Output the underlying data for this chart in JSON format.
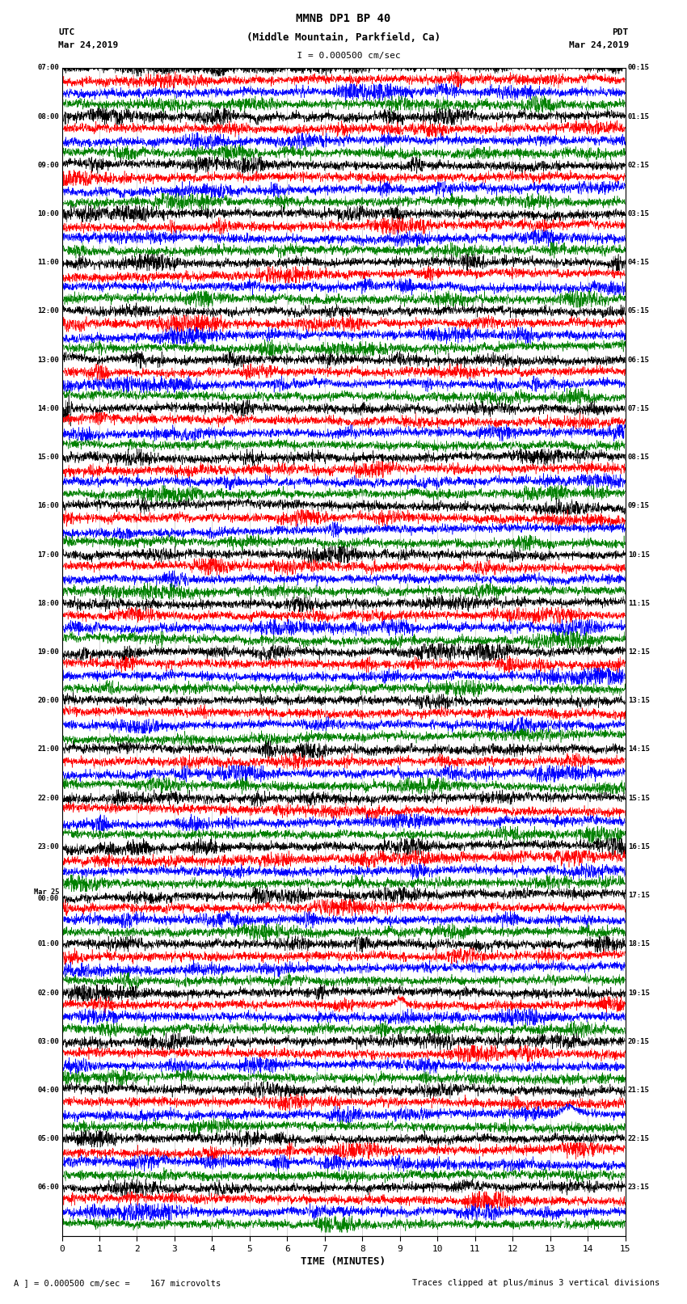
{
  "title_line1": "MMNB DP1 BP 40",
  "title_line2": "(Middle Mountain, Parkfield, Ca)",
  "scale_text": "I = 0.000500 cm/sec",
  "left_header": "UTC",
  "left_date": "Mar 24,2019",
  "right_header": "PDT",
  "right_date": "Mar 24,2019",
  "xlabel": "TIME (MINUTES)",
  "footer_left": "A ] = 0.000500 cm/sec =    167 microvolts",
  "footer_right": "Traces clipped at plus/minus 3 vertical divisions",
  "utc_hour_labels": [
    "07:00",
    "08:00",
    "09:00",
    "10:00",
    "11:00",
    "12:00",
    "13:00",
    "14:00",
    "15:00",
    "16:00",
    "17:00",
    "18:00",
    "19:00",
    "20:00",
    "21:00",
    "22:00",
    "23:00",
    "Mar 25\n00:00",
    "01:00",
    "02:00",
    "03:00",
    "04:00",
    "05:00",
    "06:00"
  ],
  "pdt_hour_labels": [
    "00:15",
    "01:15",
    "02:15",
    "03:15",
    "04:15",
    "05:15",
    "06:15",
    "07:15",
    "08:15",
    "09:15",
    "10:15",
    "11:15",
    "12:15",
    "13:15",
    "14:15",
    "15:15",
    "16:15",
    "17:15",
    "18:15",
    "19:15",
    "20:15",
    "21:15",
    "22:15",
    "23:15"
  ],
  "trace_colors": [
    "black",
    "red",
    "blue",
    "green"
  ],
  "n_hours": 24,
  "n_channels": 4,
  "time_max": 15,
  "xticks": [
    0,
    1,
    2,
    3,
    4,
    5,
    6,
    7,
    8,
    9,
    10,
    11,
    12,
    13,
    14,
    15
  ],
  "bg_color": "#ffffff",
  "grid_color": "#aaaaaa"
}
